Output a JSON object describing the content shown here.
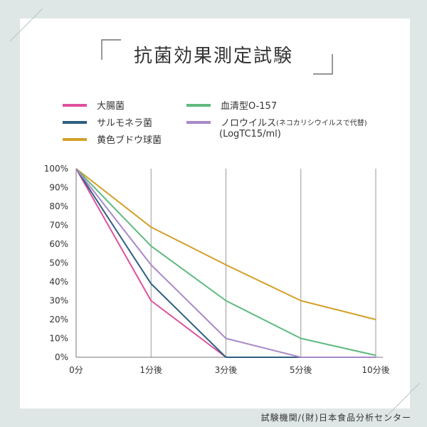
{
  "title": "抗菌効果測定試験",
  "legend": [
    {
      "label": "大腸菌",
      "color": "#e0509e",
      "note": ""
    },
    {
      "label": "サルモネラ菌",
      "color": "#2e5f80",
      "note": ""
    },
    {
      "label": "黄色ブドウ球菌",
      "color": "#d4a02a",
      "note": ""
    },
    {
      "label": "血清型O-157",
      "color": "#5fba7d",
      "note": ""
    },
    {
      "label": "ノロウイルス",
      "color": "#a888c8",
      "note": "(ネコカリシウイルスで代替)"
    }
  ],
  "legend_unit": "(LogTC15/ml)",
  "footer": "試験機関/(財)日本食品分析センター",
  "chart_data": {
    "type": "line",
    "title": "抗菌効果測定試験",
    "xlabel": "",
    "ylabel": "",
    "categories": [
      "0分",
      "1分後",
      "3分後",
      "5分後",
      "10分後"
    ],
    "y_ticks": [
      "0%",
      "10%",
      "20%",
      "30%",
      "40%",
      "50%",
      "60%",
      "70%",
      "80%",
      "90%",
      "100%"
    ],
    "ylim": [
      0,
      100
    ],
    "grid": "vertical",
    "legend_position": "top",
    "series": [
      {
        "name": "大腸菌",
        "color": "#e0509e",
        "values": [
          100,
          30,
          0,
          0,
          0
        ]
      },
      {
        "name": "サルモネラ菌",
        "color": "#2e5f80",
        "values": [
          100,
          39,
          0,
          0,
          0
        ]
      },
      {
        "name": "黄色ブドウ球菌",
        "color": "#d4a02a",
        "values": [
          100,
          69,
          49,
          30,
          20
        ]
      },
      {
        "name": "血清型O-157",
        "color": "#5fba7d",
        "values": [
          100,
          59,
          30,
          10,
          1
        ]
      },
      {
        "name": "ノロウイルス",
        "color": "#a888c8",
        "values": [
          100,
          49,
          10,
          0,
          0
        ]
      }
    ]
  }
}
